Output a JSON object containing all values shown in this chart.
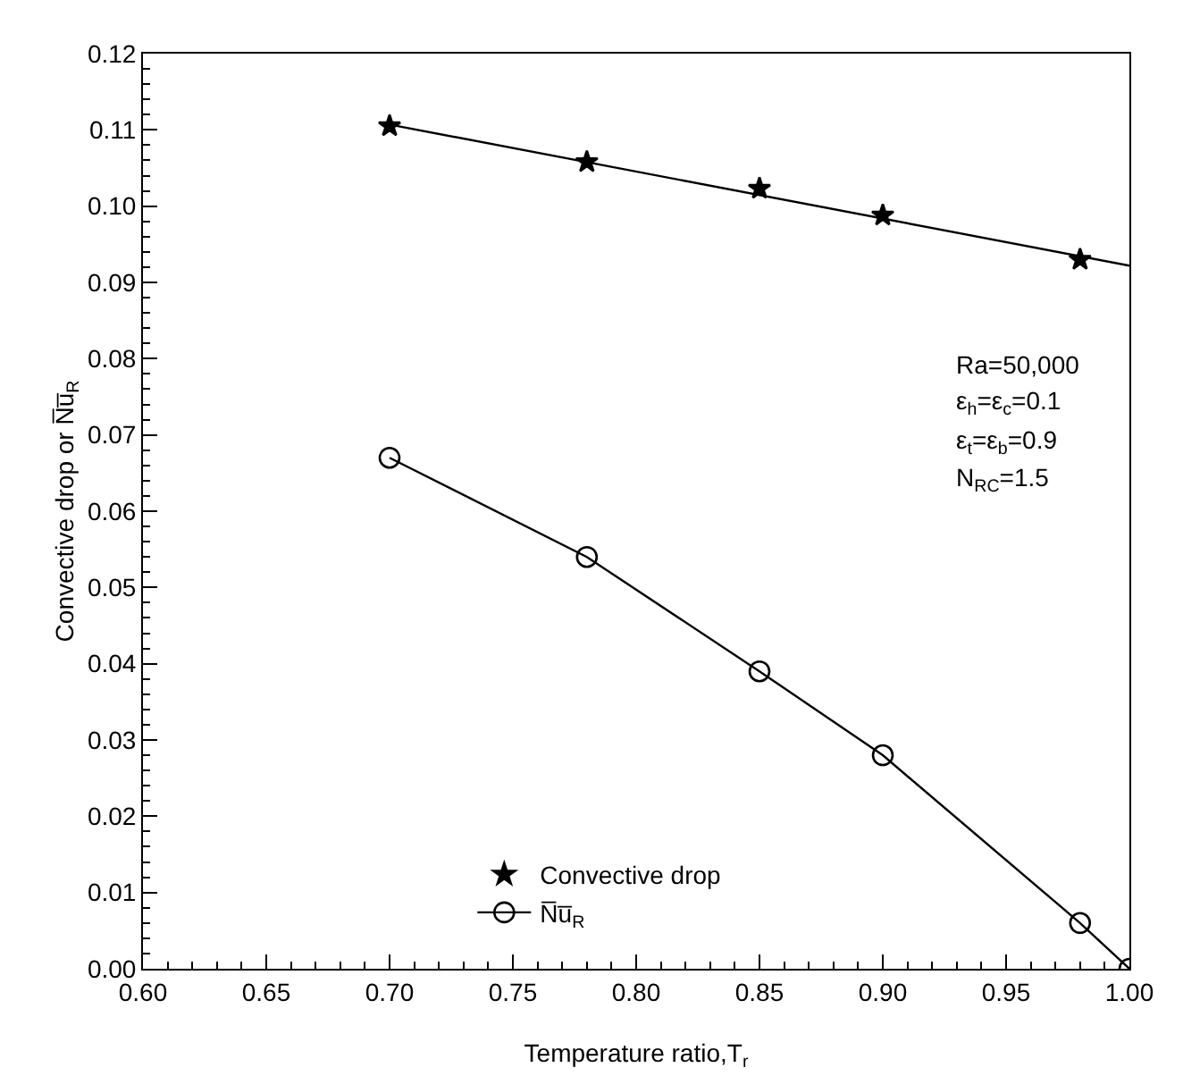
{
  "chart_data": {
    "type": "line",
    "xlabel": "Temperature ratio,T$_{r}$",
    "ylabel": "Convective drop or N̅u̅$_{R}$",
    "xlim": [
      0.6,
      1.0
    ],
    "xticks": [
      {
        "value": 0.6,
        "label": "0.60"
      },
      {
        "value": 0.65,
        "label": "0.65"
      },
      {
        "value": 0.7,
        "label": "0.70"
      },
      {
        "value": 0.75,
        "label": "0.75"
      },
      {
        "value": 0.8,
        "label": "0.80"
      },
      {
        "value": 0.85,
        "label": "0.85"
      },
      {
        "value": 0.9,
        "label": "0.90"
      },
      {
        "value": 0.95,
        "label": "0.95"
      },
      {
        "value": 1.0,
        "label": "1.00"
      }
    ],
    "ylim": [
      0,
      0.12
    ],
    "yticks": [
      {
        "value": 0,
        "label": "0.00"
      },
      {
        "value": 0.01,
        "label": "0.01"
      },
      {
        "value": 0.02,
        "label": "0.02"
      },
      {
        "value": 0.03,
        "label": "0.03"
      },
      {
        "value": 0.04,
        "label": "0.04"
      },
      {
        "value": 0.05,
        "label": "0.05"
      },
      {
        "value": 0.06,
        "label": "0.06"
      },
      {
        "value": 0.07,
        "label": "0.07"
      },
      {
        "value": 0.08,
        "label": "0.08"
      },
      {
        "value": 0.09,
        "label": "0.09"
      },
      {
        "value": 0.1,
        "label": "0.10"
      },
      {
        "value": 0.11,
        "label": "0.11"
      },
      {
        "value": 0.12,
        "label": "0.12"
      }
    ],
    "series": [
      {
        "name": "Convective drop",
        "type": "scatter",
        "marker": "star",
        "color": "#000000",
        "x": [
          0.7,
          0.78,
          0.85,
          0.9,
          0.98
        ],
        "values": [
          0.1105,
          0.1058,
          0.1023,
          0.0988,
          0.093
        ]
      },
      {
        "type": "line",
        "marker": "none",
        "color": "#000000",
        "x": [
          0.7,
          1.0
        ],
        "values": [
          0.1107,
          0.0922
        ]
      },
      {
        "name": "N̅u̅$_{R}$",
        "type": "line",
        "marker": "circle",
        "color": "#000000",
        "x": [
          0.7,
          0.78,
          0.85,
          0.9,
          0.98,
          1.0
        ],
        "values": [
          0.067,
          0.054,
          0.039,
          0.028,
          0.006,
          0.0
        ]
      }
    ],
    "annotations": [
      "Ra=50,000",
      "ε$_{h}$=ε$_{c}$=0.1",
      "ε$_{t}$=ε$_{b}$=0.9",
      "N$_{RC}$=1.5"
    ],
    "legend": "bottom",
    "grid": false
  }
}
